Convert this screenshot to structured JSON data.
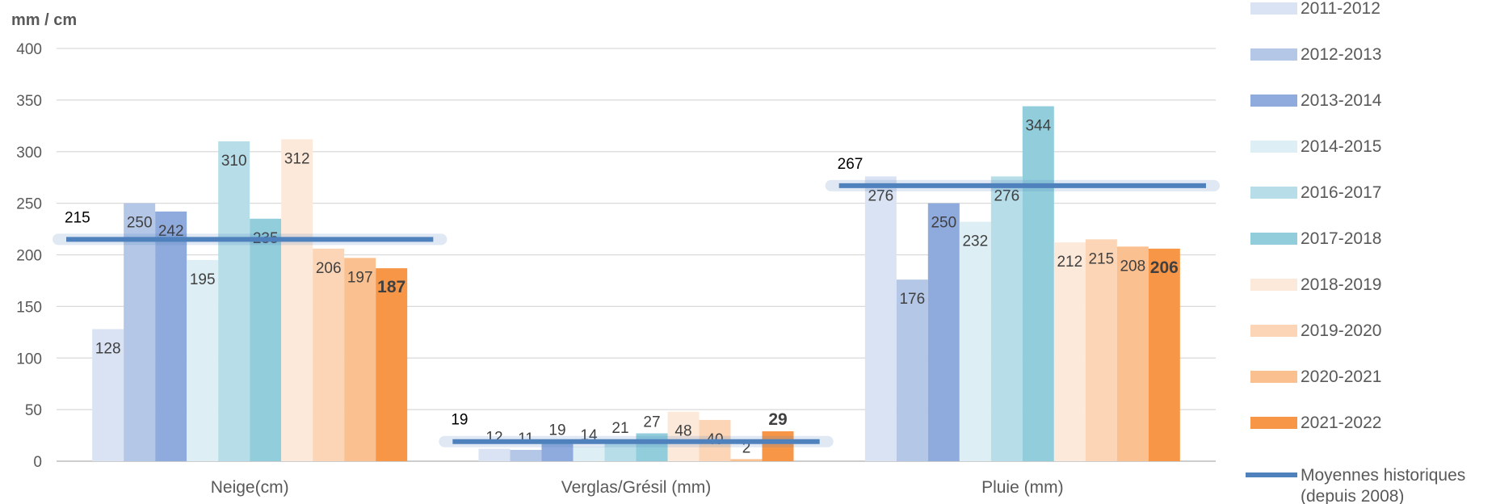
{
  "chart_data": {
    "type": "bar",
    "ylabel": "mm / cm",
    "ylim": [
      0,
      400
    ],
    "yticks": [
      0,
      50,
      100,
      150,
      200,
      250,
      300,
      350,
      400
    ],
    "grid": true,
    "legend_position": "right",
    "categories": [
      "Neige(cm)",
      "Verglas/Grésil (mm)",
      "Pluie (mm)"
    ],
    "series": [
      {
        "name": "2011-2012",
        "color": "#dae3f3",
        "values": [
          128,
          12,
          276
        ]
      },
      {
        "name": "2012-2013",
        "color": "#b4c7e7",
        "values": [
          250,
          11,
          176
        ]
      },
      {
        "name": "2013-2014",
        "color": "#8faadc",
        "values": [
          242,
          19,
          250
        ]
      },
      {
        "name": "2014-2015",
        "color": "#ddeef4",
        "values": [
          195,
          14,
          232
        ]
      },
      {
        "name": "2016-2017",
        "color": "#b6dde8",
        "values": [
          310,
          21,
          276
        ]
      },
      {
        "name": "2017-2018",
        "color": "#92cddc",
        "values": [
          235,
          27,
          344
        ]
      },
      {
        "name": "2018-2019",
        "color": "#fde9d9",
        "values": [
          312,
          48,
          212
        ]
      },
      {
        "name": "2019-2020",
        "color": "#fbd5b5",
        "values": [
          206,
          40,
          215
        ]
      },
      {
        "name": "2020-2021",
        "color": "#fac090",
        "values": [
          197,
          2,
          208
        ]
      },
      {
        "name": "2021-2022",
        "color": "#f79646",
        "values": [
          187,
          29,
          206
        ],
        "bold_labels": true
      }
    ],
    "line_series": {
      "name": "Moyennes historiques (depuis 2008)",
      "color": "#4f81bd",
      "values": [
        215,
        19,
        267
      ]
    }
  }
}
